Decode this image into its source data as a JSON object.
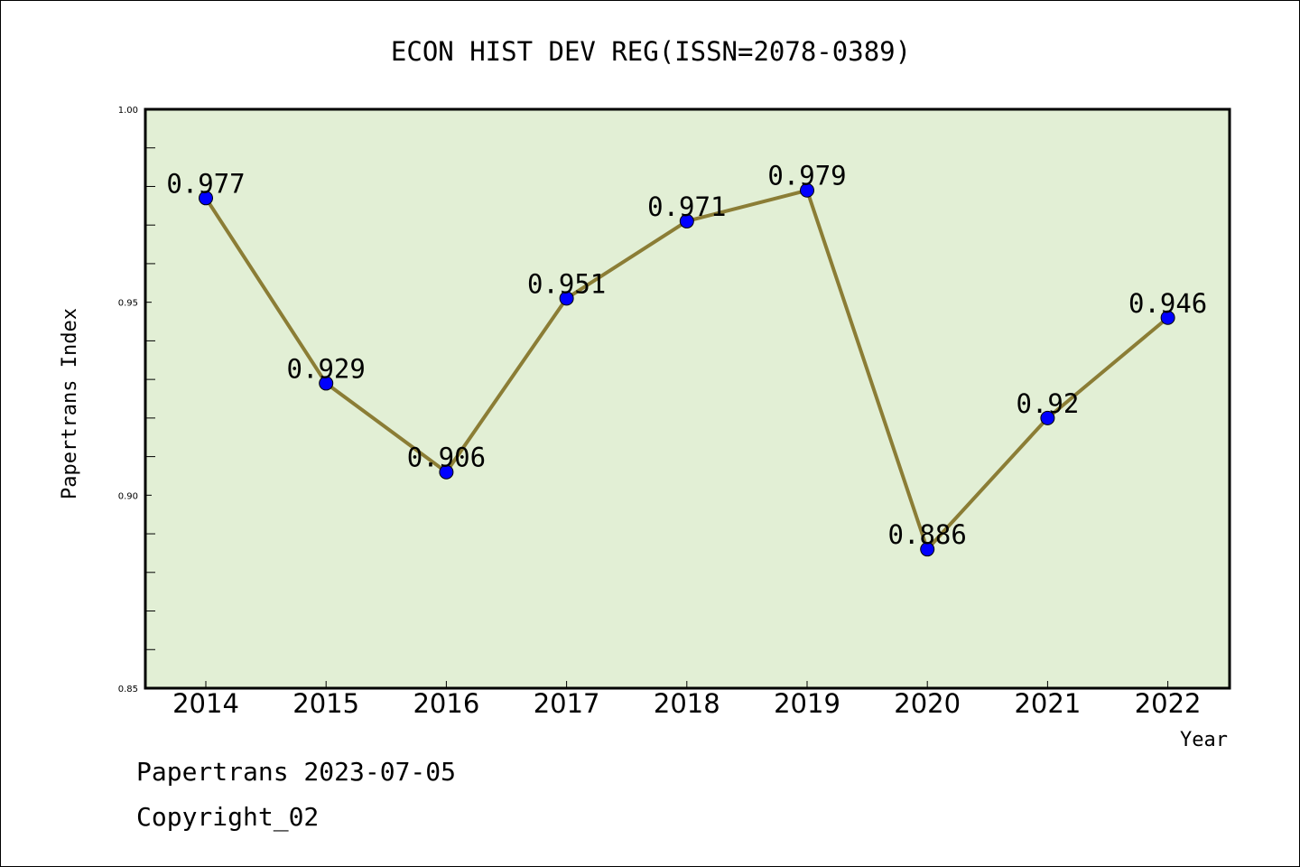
{
  "chart_data": {
    "type": "line",
    "title": "ECON HIST DEV REG(ISSN=2078-0389)",
    "xlabel": "Year",
    "ylabel": "Papertrans Index",
    "x": [
      "2014",
      "2015",
      "2016",
      "2017",
      "2018",
      "2019",
      "2020",
      "2021",
      "2022"
    ],
    "series": [
      {
        "values": [
          0.977,
          0.929,
          0.906,
          0.951,
          0.971,
          0.979,
          0.886,
          0.92,
          0.946
        ],
        "data_labels": [
          "0.977",
          "0.929",
          "0.906",
          "0.951",
          "0.971",
          "0.979",
          "0.886",
          "0.92",
          "0.946"
        ]
      }
    ],
    "ylim": [
      0.85,
      1.0
    ],
    "yticks": [
      "0.85",
      "0.90",
      "0.95",
      "1.00"
    ],
    "grid": false,
    "colors": {
      "plot_background": "#e2efd5",
      "line": "#8b7d35",
      "marker": "#0000ff"
    }
  },
  "footer": {
    "line1": "Papertrans 2023-07-05",
    "line2": "Copyright_02"
  }
}
